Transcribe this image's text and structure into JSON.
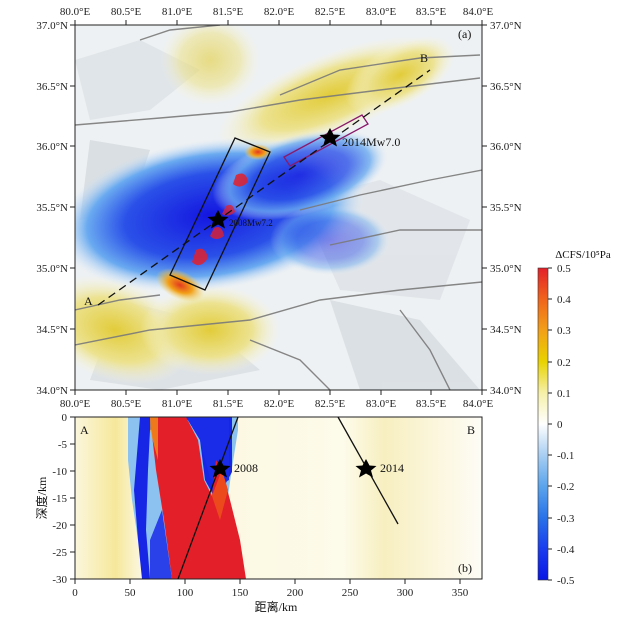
{
  "map_a": {
    "label": "(a)",
    "lon_labels": [
      "80.0°E",
      "80.5°E",
      "81.0°E",
      "81.5°E",
      "82.0°E",
      "82.5°E",
      "83.0°E",
      "83.5°E",
      "84.0°E"
    ],
    "lat_labels": [
      "37.0°N",
      "36.5°N",
      "36.0°N",
      "35.5°N",
      "35.0°N",
      "34.5°N",
      "34.0°N"
    ],
    "profile_start": "A",
    "profile_end": "B",
    "eq_2014": {
      "lon": 82.5,
      "lat": 36.05,
      "label": "2014Mw7.0"
    },
    "eq_2008": {
      "lon": 81.4,
      "lat": 35.4,
      "label": "2008Mw7.2"
    }
  },
  "colorbar": {
    "title": "ΔCFS/10⁵Pa",
    "ticks": [
      "0.5",
      "0.4",
      "0.3",
      "0.2",
      "0.1",
      "0",
      "-0.1",
      "-0.2",
      "-0.3",
      "-0.4",
      "-0.5"
    ],
    "colors": [
      "#e3202a",
      "#f0641c",
      "#f2a018",
      "#e8d200",
      "#f6f0a8",
      "#ffffff",
      "#a8cef2",
      "#5aa4ec",
      "#2a72e8",
      "#1a3cee",
      "#0a16e4"
    ]
  },
  "profile_b": {
    "label": "(b)",
    "start": "A",
    "end": "B",
    "ylabel": "深度/km",
    "xlabel": "距离/km",
    "x_ticks": [
      "0",
      "50",
      "100",
      "150",
      "200",
      "250",
      "300",
      "350"
    ],
    "y_ticks": [
      "0",
      "-5",
      "-10",
      "-15",
      "-20",
      "-25",
      "-30"
    ],
    "eq_2008": {
      "distance": 135,
      "depth": -9.5,
      "label": "2008"
    },
    "eq_2014": {
      "distance": 268,
      "depth": -9.5,
      "label": "2014"
    }
  }
}
